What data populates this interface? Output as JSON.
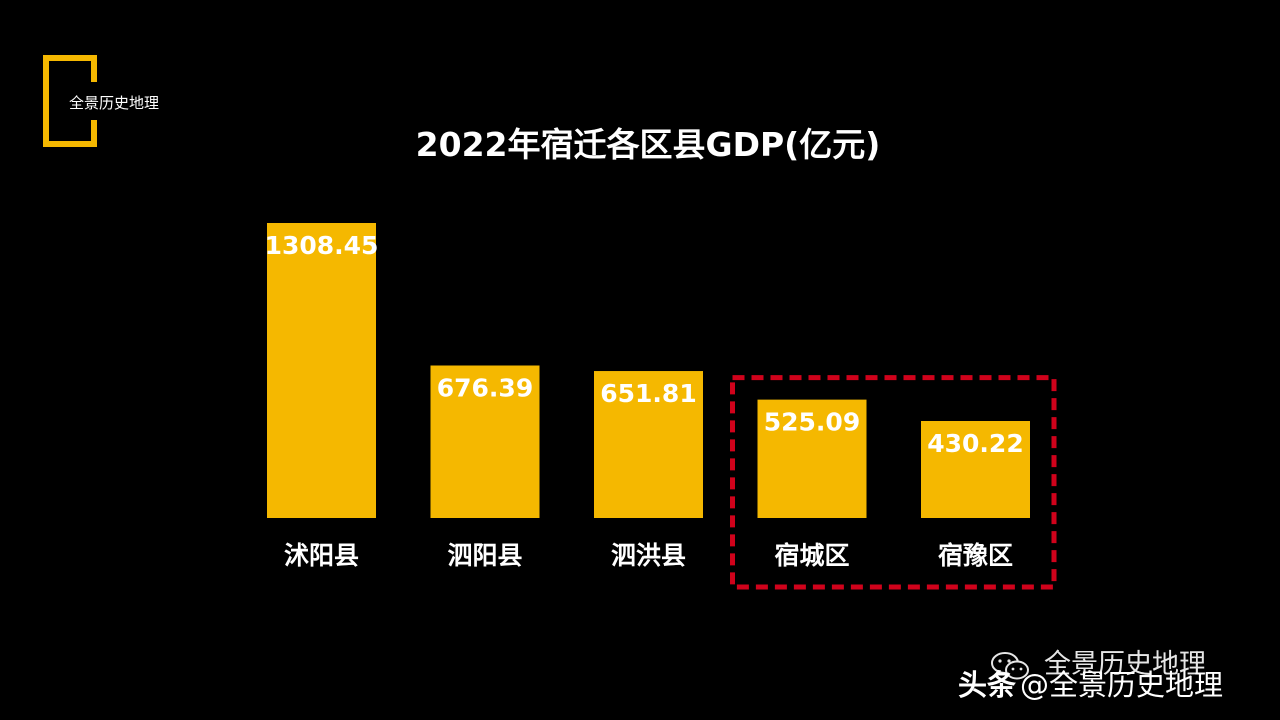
{
  "brand": {
    "logo_text": "全景历史地理",
    "logo_color": "#f5b800"
  },
  "chart_data": {
    "type": "bar",
    "title": "2022年宿迁各区县GDP(亿元)",
    "unit": "亿元",
    "categories": [
      "沭阳县",
      "泗阳县",
      "泗洪县",
      "宿城区",
      "宿豫区"
    ],
    "values": [
      1308.45,
      676.39,
      651.81,
      525.09,
      430.22
    ],
    "value_labels": [
      "1308.45",
      "676.39",
      "651.81",
      "525.09",
      "430.22"
    ],
    "xlabel": "",
    "ylabel": "",
    "ylim": [
      0,
      1308.45
    ],
    "grid": false,
    "legend": "none",
    "bar_color": "#f5b800",
    "label_color": "#ffffff",
    "highlight": {
      "categories": [
        "宿城区",
        "宿豫区"
      ],
      "style": "dashed-box",
      "color": "#d0021b"
    }
  },
  "watermarks": {
    "wechat_icon": "wechat-icon",
    "wechat_name": "全景历史地理",
    "toutiao_brand": "头条",
    "toutiao_handle": "@全景历史地理"
  }
}
